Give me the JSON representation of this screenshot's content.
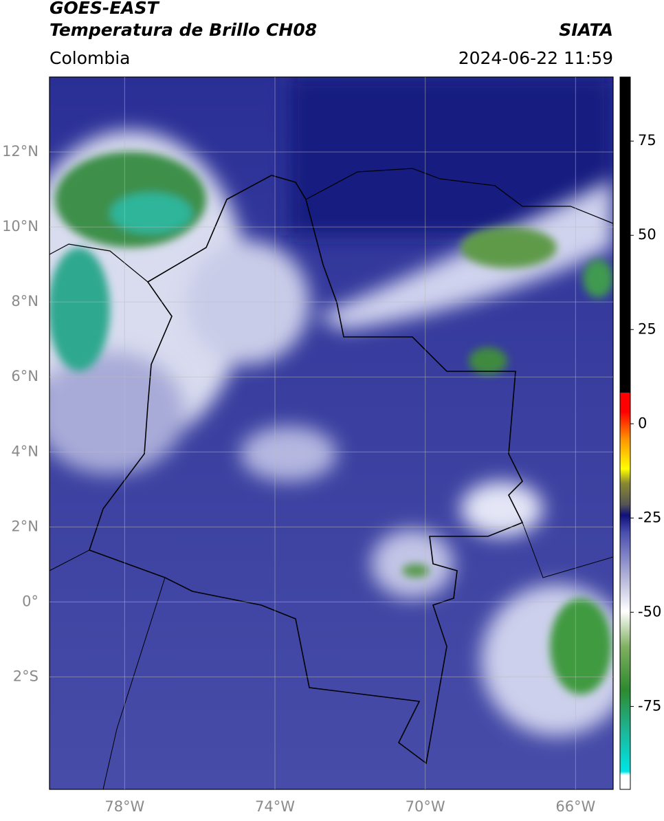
{
  "map": {
    "title_line1": "GOES-EAST",
    "title_line2": "Temperatura de Brillo CH08",
    "source": "SIATA",
    "region": "Colombia",
    "datetime": "2024-06-22 11:59",
    "xlim": [
      -80,
      -65
    ],
    "ylim": [
      -5,
      14
    ],
    "xticks": [
      {
        "value": -78,
        "label": "78°W"
      },
      {
        "value": -74,
        "label": "74°W"
      },
      {
        "value": -70,
        "label": "70°W"
      },
      {
        "value": -66,
        "label": "66°W"
      }
    ],
    "yticks": [
      {
        "value": 12,
        "label": "12°N"
      },
      {
        "value": 10,
        "label": "10°N"
      },
      {
        "value": 8,
        "label": "8°N"
      },
      {
        "value": 6,
        "label": "6°N"
      },
      {
        "value": 4,
        "label": "4°N"
      },
      {
        "value": 2,
        "label": "2°N"
      },
      {
        "value": 0,
        "label": "0°"
      },
      {
        "value": -2,
        "label": "2°S"
      }
    ],
    "colorbar": {
      "lim": [
        -97,
        92
      ],
      "ticks": [
        75,
        50,
        25,
        0,
        -25,
        -50,
        -75
      ]
    }
  }
}
